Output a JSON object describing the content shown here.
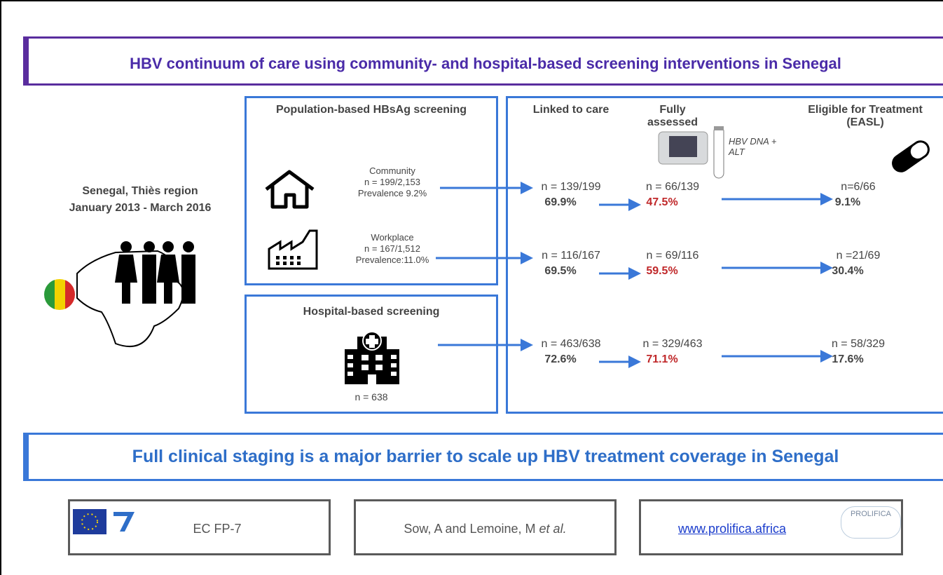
{
  "title": "HBV continuum of care using community- and hospital-based screening interventions in Senegal",
  "location": {
    "region": "Senegal, Thiès region",
    "period": "January 2013 - March 2016"
  },
  "population_box": {
    "title": "Population-based HBsAg screening",
    "groups": [
      {
        "name": "Community",
        "n": "n = 199/2,153",
        "prevalence": "Prevalence 9.2%"
      },
      {
        "name": "Workplace",
        "n": "n = 167/1,512",
        "prevalence": "Prevalence:11.0%"
      }
    ]
  },
  "hospital_box": {
    "title": "Hospital-based screening",
    "n": "n = 638"
  },
  "columns": [
    "Linked to care",
    "Fully assessed",
    "Eligible for Treatment (EASL)"
  ],
  "test_label": "HBV DNA + ALT",
  "rows": [
    [
      {
        "n": "n = 139/199",
        "pct": "69.9%"
      },
      {
        "n": "n = 66/139",
        "pct": "47.5%"
      },
      {
        "n": "n=6/66",
        "pct": "9.1%"
      }
    ],
    [
      {
        "n": "n = 116/167",
        "pct": "69.5%"
      },
      {
        "n": "n = 69/116",
        "pct": "59.5%"
      },
      {
        "n": "n =21/69",
        "pct": "30.4%"
      }
    ],
    [
      {
        "n": "n = 463/638",
        "pct": "72.6%"
      },
      {
        "n": "n = 329/463",
        "pct": "71.1%"
      },
      {
        "n": "n = 58/329",
        "pct": "17.6%"
      }
    ]
  ],
  "conclusion": "Full clinical staging is a major barrier to scale up HBV treatment coverage in Senegal",
  "footer": {
    "funding": "EC FP-7",
    "authors": "Sow, A and Lemoine, M",
    "authors_etal": "et al.",
    "website": "www.prolifica.africa",
    "logo_text": "PROLIFICA"
  }
}
